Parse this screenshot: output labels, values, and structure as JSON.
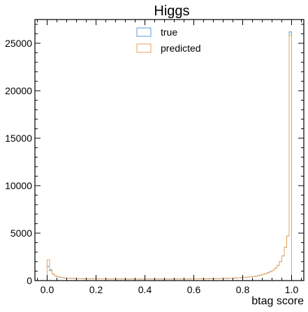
{
  "chart_data": {
    "type": "histogram",
    "title": "Higgs",
    "xlabel": "btag score",
    "ylabel": "",
    "xlim": [
      -0.05,
      1.05
    ],
    "ylim": [
      0,
      27500
    ],
    "x_ticks": [
      0.0,
      0.2,
      0.4,
      0.6,
      0.8,
      1.0
    ],
    "x_tick_labels": [
      "0.0",
      "0.2",
      "0.4",
      "0.6",
      "0.8",
      "1.0"
    ],
    "y_ticks": [
      0,
      5000,
      10000,
      15000,
      20000,
      25000
    ],
    "y_tick_labels": [
      "0",
      "5000",
      "10000",
      "15000",
      "20000",
      "25000"
    ],
    "legend_position": "top-center",
    "bin_edges_range": [
      0.0,
      1.0
    ],
    "n_bins": 100,
    "series": [
      {
        "name": "true",
        "color": "#5b9bd5",
        "values": [
          1500,
          1050,
          680,
          500,
          400,
          340,
          300,
          280,
          260,
          250,
          240,
          230,
          220,
          215,
          210,
          205,
          200,
          195,
          190,
          188,
          186,
          184,
          182,
          180,
          178,
          176,
          175,
          174,
          173,
          172,
          171,
          170,
          170,
          169,
          169,
          168,
          168,
          168,
          168,
          168,
          168,
          168,
          168,
          168,
          168,
          168,
          168,
          168,
          168,
          168,
          170,
          170,
          171,
          172,
          173,
          174,
          175,
          176,
          178,
          180,
          182,
          184,
          186,
          188,
          190,
          193,
          196,
          200,
          205,
          210,
          215,
          220,
          228,
          236,
          245,
          255,
          265,
          280,
          295,
          310,
          330,
          350,
          375,
          400,
          430,
          470,
          520,
          580,
          650,
          730,
          830,
          950,
          1100,
          1300,
          1600,
          2000,
          2600,
          3500,
          4700,
          26200
        ]
      },
      {
        "name": "predicted",
        "color": "#e8a35c",
        "values": [
          2200,
          1150,
          700,
          510,
          410,
          345,
          305,
          283,
          262,
          252,
          242,
          232,
          222,
          216,
          211,
          206,
          201,
          196,
          191,
          189,
          187,
          185,
          183,
          181,
          179,
          177,
          176,
          175,
          174,
          173,
          172,
          171,
          171,
          170,
          170,
          169,
          169,
          169,
          169,
          169,
          169,
          169,
          169,
          169,
          169,
          169,
          169,
          169,
          169,
          169,
          171,
          171,
          172,
          173,
          174,
          175,
          176,
          177,
          179,
          181,
          183,
          185,
          187,
          189,
          191,
          194,
          197,
          201,
          206,
          211,
          216,
          221,
          229,
          237,
          246,
          256,
          266,
          281,
          296,
          311,
          331,
          351,
          376,
          401,
          431,
          471,
          521,
          581,
          651,
          731,
          831,
          951,
          1101,
          1301,
          1601,
          2001,
          2601,
          3501,
          4701,
          25800
        ]
      }
    ]
  }
}
